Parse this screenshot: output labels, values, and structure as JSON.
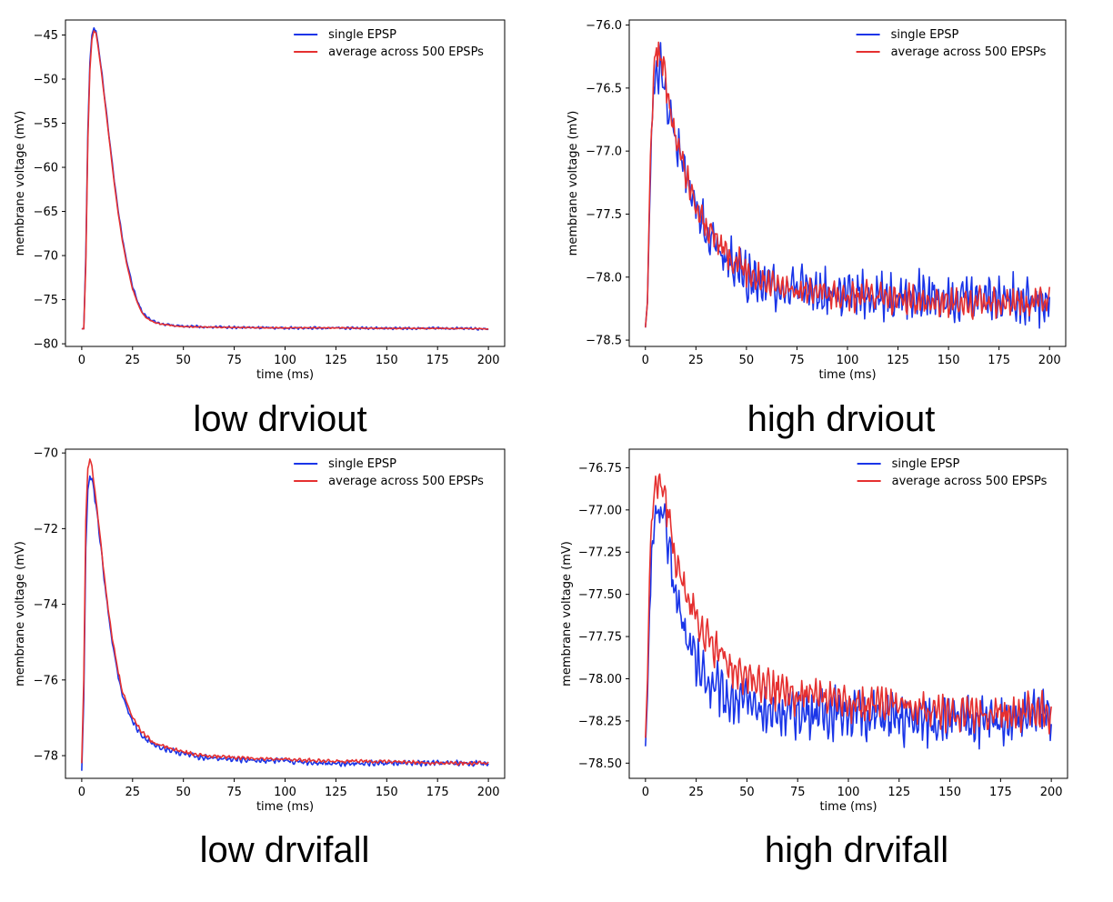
{
  "colors": {
    "single": "#1a35e8",
    "average": "#e53030"
  },
  "chart_data": [
    {
      "type": "line",
      "caption": "low drviout",
      "xlabel": "time (ms)",
      "ylabel": "membrane voltage (mV)",
      "xlim": [
        -8,
        208
      ],
      "ylim": [
        -80.3,
        -43.3
      ],
      "xticks": [
        0,
        25,
        50,
        75,
        100,
        125,
        150,
        175,
        200
      ],
      "yticks": [
        -80,
        -75,
        -70,
        -65,
        -60,
        -55,
        -50,
        -45
      ],
      "ytick_labels": [
        "−80",
        "−75",
        "−70",
        "−65",
        "−60",
        "−55",
        "−50",
        "−45"
      ],
      "legend": {
        "position": "top-right",
        "entries": [
          "single EPSP",
          "average across 500 EPSPs"
        ]
      },
      "grid": false,
      "series": [
        {
          "name": "single EPSP",
          "color": "#1a35e8",
          "x": [
            0,
            1,
            2,
            3,
            4,
            5,
            6,
            7,
            8,
            10,
            12,
            14,
            16,
            18,
            20,
            22,
            25,
            28,
            30,
            32,
            35,
            38,
            40,
            45,
            50,
            60,
            75,
            100,
            125,
            150,
            175,
            200
          ],
          "y": [
            -78.3,
            -78.3,
            -70,
            -56,
            -48,
            -45,
            -44.2,
            -44.5,
            -46,
            -49.5,
            -53.5,
            -57.5,
            -61.5,
            -65,
            -68,
            -70.5,
            -73.5,
            -75.5,
            -76.5,
            -77,
            -77.4,
            -77.7,
            -77.8,
            -77.9,
            -78,
            -78.1,
            -78.15,
            -78.2,
            -78.2,
            -78.25,
            -78.25,
            -78.3
          ],
          "noise": 0.15
        },
        {
          "name": "average across 500 EPSPs",
          "color": "#e53030",
          "x": [
            0,
            1,
            2,
            3,
            4,
            5,
            6,
            7,
            8,
            10,
            12,
            14,
            16,
            18,
            20,
            22,
            25,
            28,
            30,
            32,
            35,
            38,
            40,
            45,
            50,
            60,
            75,
            100,
            125,
            150,
            175,
            200
          ],
          "y": [
            -78.3,
            -78.3,
            -71,
            -57,
            -49,
            -45.5,
            -44.5,
            -44.8,
            -46.2,
            -49.8,
            -53.8,
            -57.8,
            -61.8,
            -65.3,
            -68.3,
            -70.8,
            -73.8,
            -75.7,
            -76.6,
            -77.1,
            -77.5,
            -77.7,
            -77.8,
            -77.95,
            -78.05,
            -78.1,
            -78.15,
            -78.2,
            -78.2,
            -78.25,
            -78.25,
            -78.3
          ],
          "noise": 0.06
        }
      ]
    },
    {
      "type": "line",
      "caption": "high drviout",
      "xlabel": "time (ms)",
      "ylabel": "membrane voltage (mV)",
      "xlim": [
        -8,
        208
      ],
      "ylim": [
        -78.55,
        -75.96
      ],
      "xticks": [
        0,
        25,
        50,
        75,
        100,
        125,
        150,
        175,
        200
      ],
      "yticks": [
        -78.5,
        -78.0,
        -77.5,
        -77.0,
        -76.5,
        -76.0
      ],
      "ytick_labels": [
        "−78.5",
        "−78.0",
        "−77.5",
        "−77.0",
        "−76.5",
        "−76.0"
      ],
      "legend": {
        "position": "top-right",
        "entries": [
          "single EPSP",
          "average across 500 EPSPs"
        ]
      },
      "grid": false,
      "series": [
        {
          "name": "single EPSP",
          "color": "#1a35e8",
          "x": [
            0,
            1,
            2,
            3,
            4,
            5,
            6,
            8,
            10,
            12,
            15,
            20,
            25,
            30,
            40,
            50,
            60,
            75,
            100,
            125,
            150,
            175,
            200
          ],
          "y": [
            -78.4,
            -78.2,
            -77.5,
            -76.9,
            -76.5,
            -76.4,
            -76.35,
            -76.35,
            -76.5,
            -76.7,
            -76.9,
            -77.2,
            -77.45,
            -77.65,
            -77.85,
            -78.0,
            -78.05,
            -78.1,
            -78.15,
            -78.15,
            -78.15,
            -78.15,
            -78.2
          ],
          "noise": 0.2
        },
        {
          "name": "average across 500 EPSPs",
          "color": "#e53030",
          "x": [
            0,
            1,
            2,
            3,
            4,
            5,
            6,
            8,
            10,
            12,
            15,
            20,
            25,
            30,
            40,
            50,
            60,
            75,
            100,
            125,
            150,
            175,
            200
          ],
          "y": [
            -78.4,
            -78.2,
            -77.4,
            -76.8,
            -76.4,
            -76.25,
            -76.2,
            -76.25,
            -76.45,
            -76.65,
            -76.9,
            -77.2,
            -77.45,
            -77.6,
            -77.8,
            -77.95,
            -78.05,
            -78.1,
            -78.15,
            -78.18,
            -78.2,
            -78.2,
            -78.2
          ],
          "noise": 0.13
        }
      ]
    },
    {
      "type": "line",
      "caption": "low drvifall",
      "xlabel": "time (ms)",
      "ylabel": "membrane voltage (mV)",
      "xlim": [
        -8,
        208
      ],
      "ylim": [
        -78.6,
        -69.9
      ],
      "xticks": [
        0,
        25,
        50,
        75,
        100,
        125,
        150,
        175,
        200
      ],
      "yticks": [
        -78,
        -76,
        -74,
        -72,
        -70
      ],
      "ytick_labels": [
        "−78",
        "−76",
        "−74",
        "−72",
        "−70"
      ],
      "legend": {
        "position": "top-right",
        "entries": [
          "single EPSP",
          "average across 500 EPSPs"
        ]
      },
      "grid": false,
      "series": [
        {
          "name": "single EPSP",
          "color": "#1a35e8",
          "x": [
            0,
            1,
            2,
            3,
            4,
            5,
            6,
            8,
            10,
            12,
            15,
            18,
            20,
            25,
            30,
            35,
            40,
            50,
            60,
            75,
            100,
            125,
            150,
            175,
            200
          ],
          "y": [
            -78.4,
            -76.5,
            -72.5,
            -71,
            -70.6,
            -70.7,
            -71,
            -71.8,
            -72.8,
            -73.8,
            -75,
            -75.9,
            -76.4,
            -77.1,
            -77.5,
            -77.7,
            -77.8,
            -77.95,
            -78.05,
            -78.1,
            -78.15,
            -78.2,
            -78.2,
            -78.2,
            -78.2
          ],
          "noise": 0.08
        },
        {
          "name": "average across 500 EPSPs",
          "color": "#e53030",
          "x": [
            0,
            1,
            2,
            3,
            4,
            5,
            6,
            8,
            10,
            12,
            15,
            18,
            20,
            25,
            30,
            35,
            40,
            50,
            60,
            75,
            100,
            125,
            150,
            175,
            200
          ],
          "y": [
            -78.2,
            -76,
            -71.8,
            -70.4,
            -70.15,
            -70.35,
            -70.8,
            -71.7,
            -72.7,
            -73.7,
            -74.9,
            -75.8,
            -76.3,
            -77.0,
            -77.4,
            -77.65,
            -77.75,
            -77.9,
            -78.0,
            -78.05,
            -78.1,
            -78.15,
            -78.15,
            -78.2,
            -78.2
          ],
          "noise": 0.05
        }
      ]
    },
    {
      "type": "line",
      "caption": "high drvifall",
      "xlabel": "time (ms)",
      "ylabel": "membrane voltage (mV)",
      "xlim": [
        -8,
        208
      ],
      "ylim": [
        -78.59,
        -76.64
      ],
      "xticks": [
        0,
        25,
        50,
        75,
        100,
        125,
        150,
        175,
        200
      ],
      "yticks": [
        -78.5,
        -78.25,
        -78.0,
        -77.75,
        -77.5,
        -77.25,
        -77.0,
        -76.75
      ],
      "ytick_labels": [
        "−78.50",
        "−78.25",
        "−78.00",
        "−77.75",
        "−77.50",
        "−77.25",
        "−77.00",
        "−76.75"
      ],
      "legend": {
        "position": "top-right",
        "entries": [
          "single EPSP",
          "average across 500 EPSPs"
        ]
      },
      "grid": false,
      "series": [
        {
          "name": "single EPSP",
          "color": "#1a35e8",
          "x": [
            0,
            1,
            2,
            3,
            4,
            5,
            6,
            8,
            10,
            12,
            15,
            20,
            25,
            30,
            40,
            50,
            60,
            75,
            100,
            125,
            150,
            175,
            200
          ],
          "y": [
            -78.4,
            -78.1,
            -77.6,
            -77.3,
            -77.15,
            -77.05,
            -77.0,
            -77.0,
            -77.1,
            -77.3,
            -77.5,
            -77.75,
            -77.9,
            -78.0,
            -78.1,
            -78.15,
            -78.2,
            -78.2,
            -78.2,
            -78.25,
            -78.25,
            -78.25,
            -78.2
          ],
          "noise": 0.16
        },
        {
          "name": "average across 500 EPSPs",
          "color": "#e53030",
          "x": [
            0,
            1,
            2,
            3,
            4,
            5,
            6,
            8,
            10,
            12,
            15,
            20,
            25,
            30,
            40,
            50,
            60,
            75,
            100,
            125,
            150,
            175,
            200
          ],
          "y": [
            -78.35,
            -78.0,
            -77.4,
            -77.05,
            -76.9,
            -76.85,
            -76.85,
            -76.85,
            -76.95,
            -77.1,
            -77.3,
            -77.5,
            -77.65,
            -77.75,
            -77.9,
            -78.0,
            -78.05,
            -78.1,
            -78.15,
            -78.15,
            -78.2,
            -78.2,
            -78.2
          ],
          "noise": 0.12
        }
      ]
    }
  ]
}
